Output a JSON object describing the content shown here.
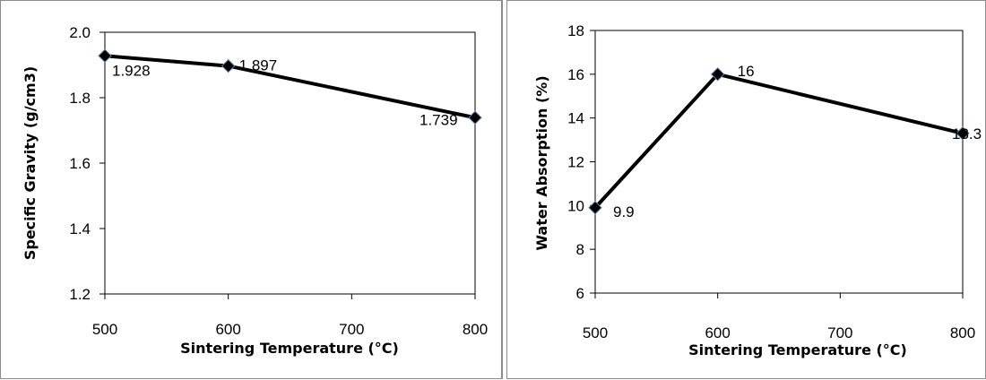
{
  "chart_data": [
    {
      "type": "line",
      "xlabel": "Sintering Temperature (°C)",
      "ylabel": "Specific Gravity (g/cm3)",
      "x_ticks": [
        "500",
        "600",
        "700",
        "800"
      ],
      "y_ticks": [
        "1.2",
        "1.4",
        "1.6",
        "1.8",
        "2.0"
      ],
      "xlim": [
        500,
        800
      ],
      "ylim": [
        1.2,
        2.0
      ],
      "grid": false,
      "marker": "diamond",
      "marker_color": "#000000",
      "line_color": "#000000",
      "x": [
        500,
        600,
        800
      ],
      "values": [
        1.928,
        1.897,
        1.739
      ],
      "labels": [
        "1.928",
        "1.897",
        "1.739"
      ]
    },
    {
      "type": "line",
      "xlabel": "Sintering Temperature (°C)",
      "ylabel": "Water Absorption (%)",
      "x_ticks": [
        "500",
        "600",
        "700",
        "800"
      ],
      "y_ticks": [
        "6",
        "8",
        "10",
        "12",
        "14",
        "16",
        "18"
      ],
      "xlim": [
        500,
        800
      ],
      "ylim": [
        6,
        18
      ],
      "grid": false,
      "marker": "diamond",
      "marker_color": "#000000",
      "line_color": "#000000",
      "x": [
        500,
        600,
        800
      ],
      "values": [
        9.9,
        16,
        13.3
      ],
      "labels": [
        "9.9",
        "16",
        "13.3"
      ]
    }
  ]
}
